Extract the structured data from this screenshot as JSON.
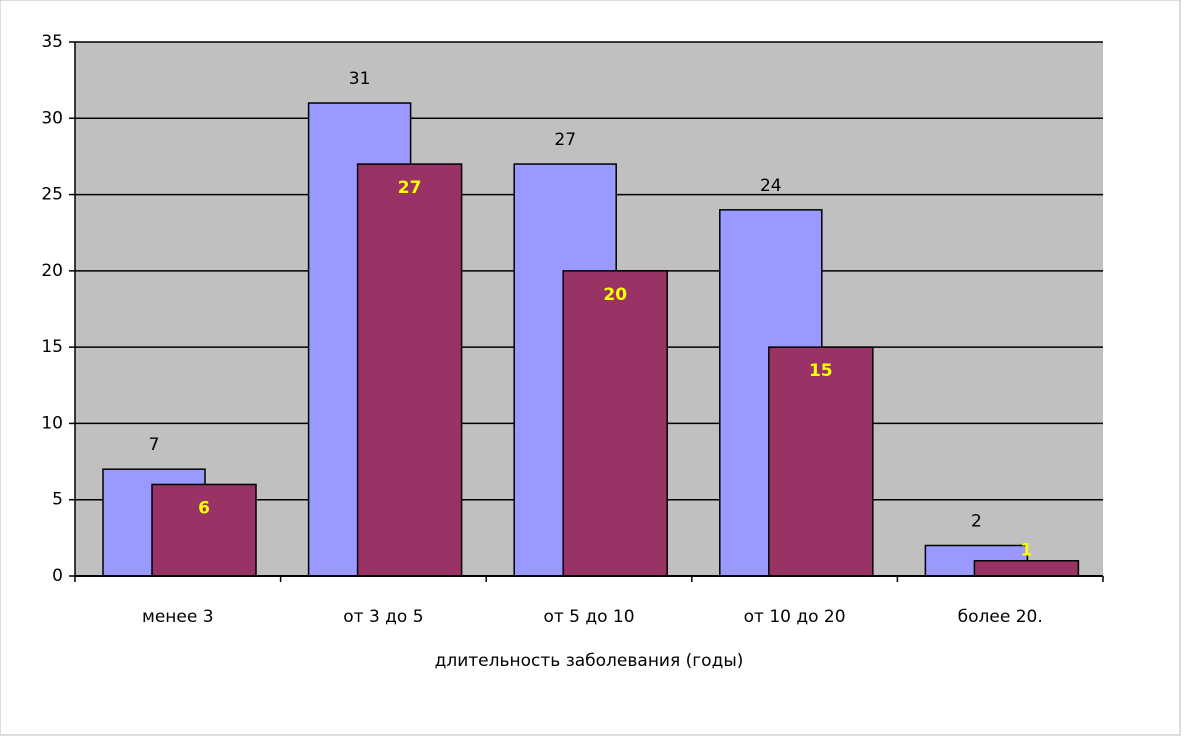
{
  "chart_data": {
    "type": "bar",
    "x_label": "длительность заболевания (годы)",
    "categories": [
      "менее 3",
      "от 3 до 5",
      "от 5 до 10",
      "от 10 до 20",
      "более 20."
    ],
    "series": [
      {
        "color": "#9999ff",
        "values": [
          7,
          31,
          27,
          24,
          2
        ]
      },
      {
        "color": "#993366",
        "values": [
          6,
          27,
          20,
          15,
          1
        ]
      }
    ],
    "ylim": [
      0,
      35
    ],
    "yticks": [
      0,
      5,
      10,
      15,
      20,
      25,
      30,
      35
    ],
    "grid": true
  }
}
